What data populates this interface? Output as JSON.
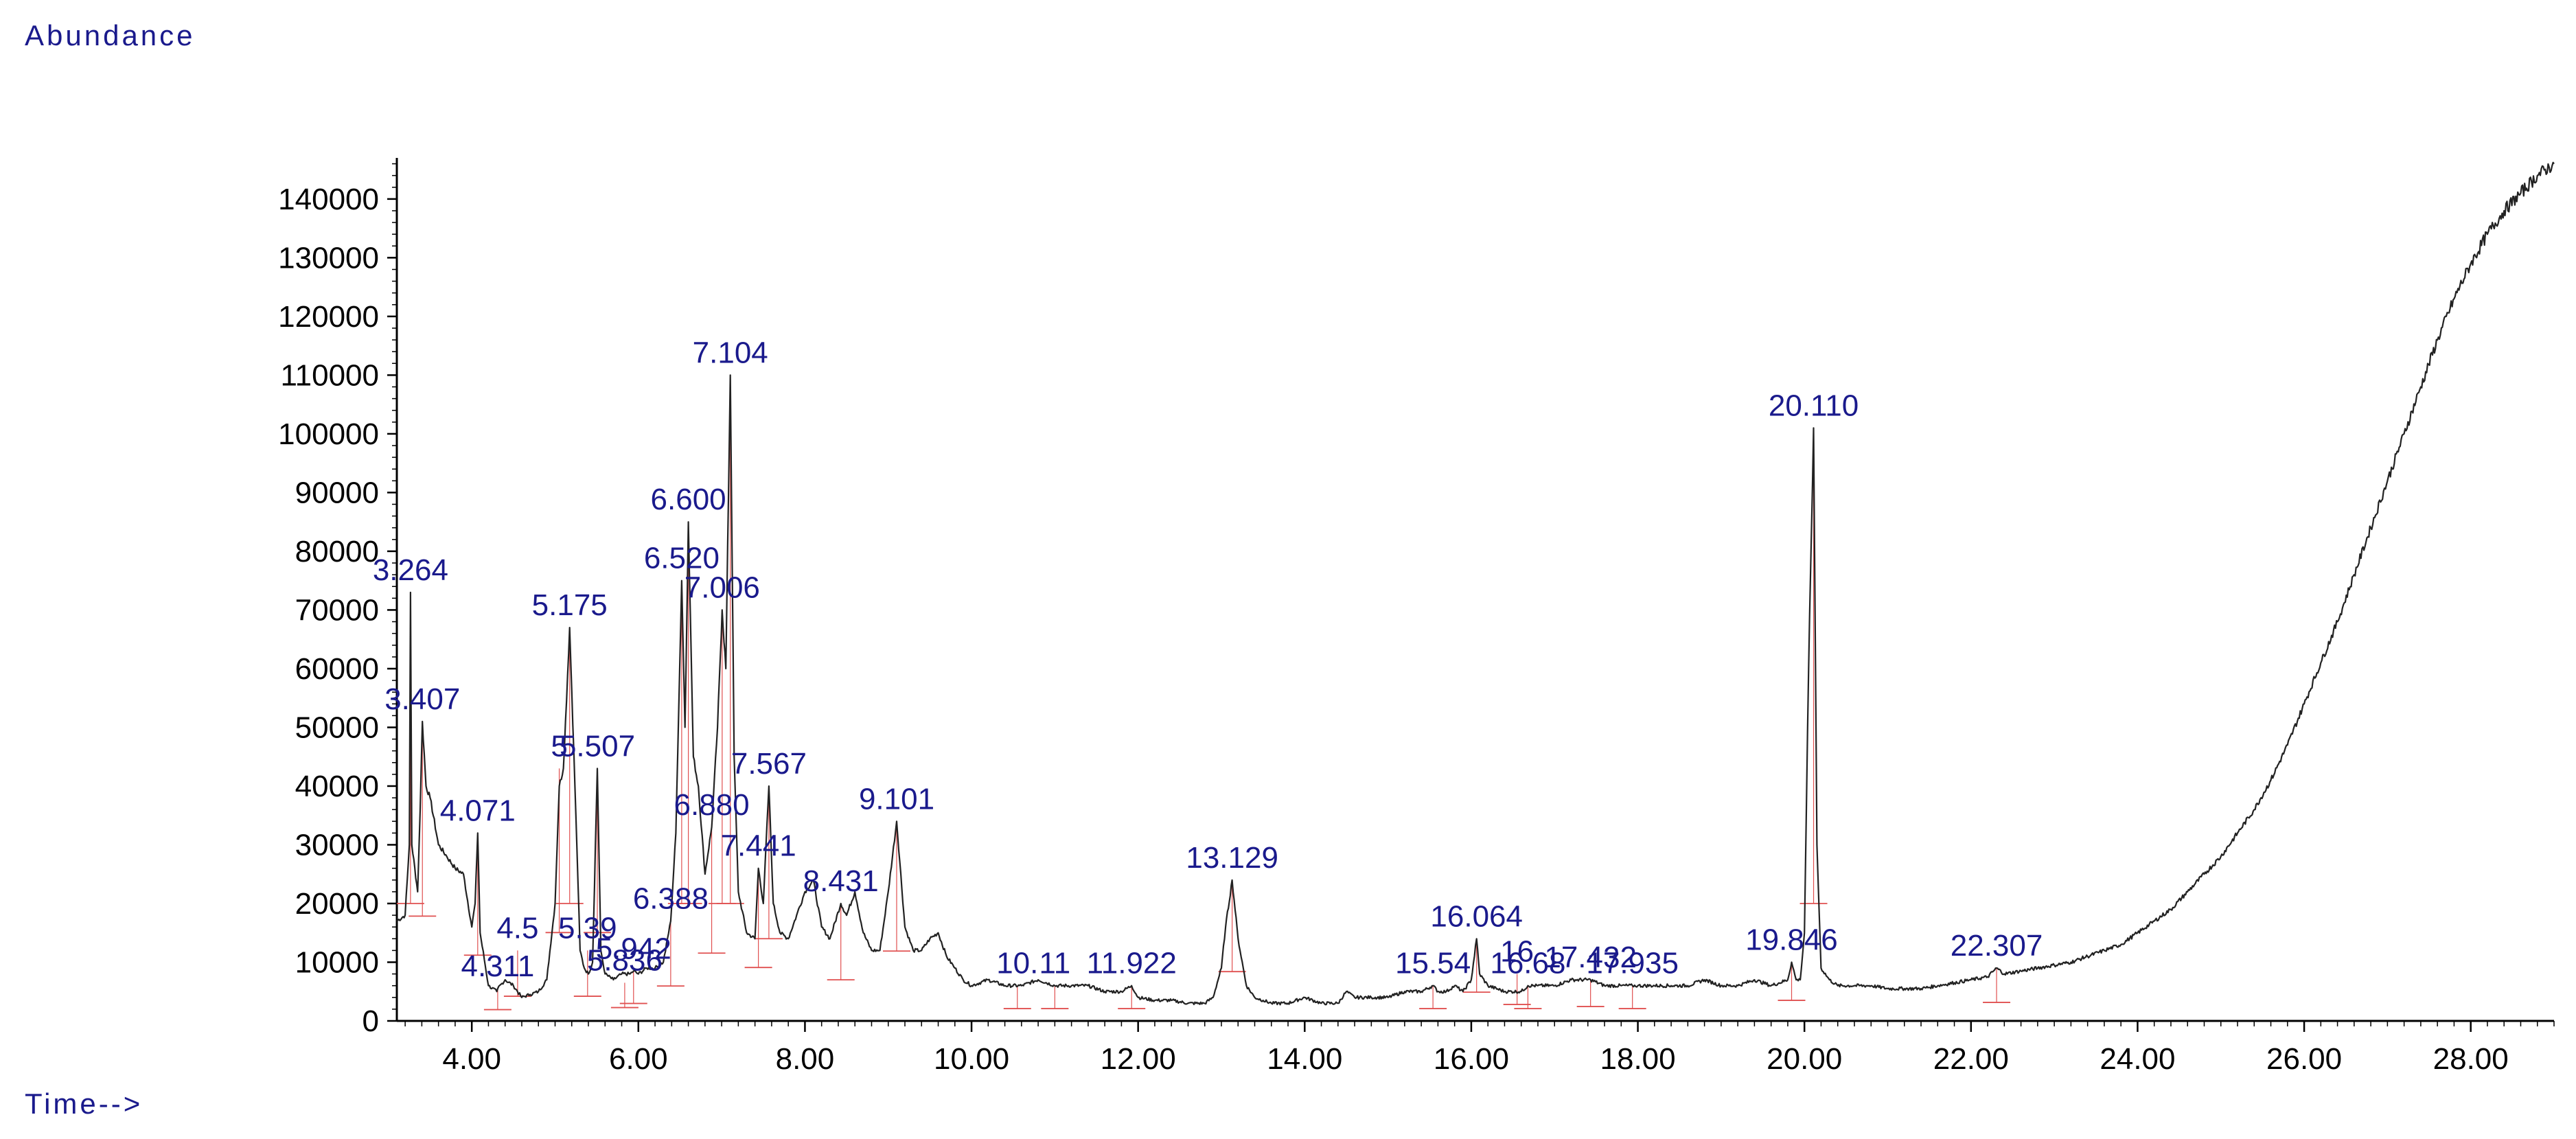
{
  "chart_data": {
    "type": "line",
    "ylabel": "Abundance",
    "xlabel": "Time-->",
    "xlim": [
      3.1,
      29.0
    ],
    "ylim": [
      0,
      147000
    ],
    "x_ticks": [
      4.0,
      6.0,
      8.0,
      10.0,
      12.0,
      14.0,
      16.0,
      18.0,
      20.0,
      22.0,
      24.0,
      26.0,
      28.0
    ],
    "x_tick_labels": [
      "4.00",
      "6.00",
      "8.00",
      "10.00",
      "12.00",
      "14.00",
      "16.00",
      "18.00",
      "20.00",
      "22.00",
      "24.00",
      "26.00",
      "28.00"
    ],
    "y_ticks": [
      0,
      10000,
      20000,
      30000,
      40000,
      50000,
      60000,
      70000,
      80000,
      90000,
      100000,
      110000,
      120000,
      130000,
      140000
    ],
    "y_tick_labels": [
      "0",
      "10000",
      "20000",
      "30000",
      "40000",
      "50000",
      "60000",
      "70000",
      "80000",
      "90000",
      "100000",
      "110000",
      "120000",
      "130000",
      "140000"
    ],
    "grid": false,
    "colors": {
      "trace": "#222222",
      "baseline": "#e05050",
      "labels": "#1a1a8c",
      "axis": "#000000"
    },
    "series": [
      {
        "x": [
          3.1,
          3.2,
          3.25,
          3.264,
          3.28,
          3.35,
          3.38,
          3.407,
          3.45,
          3.5,
          3.6,
          3.7,
          3.8,
          3.9,
          4.0,
          4.04,
          4.071,
          4.1,
          4.2,
          4.3,
          4.311,
          4.4,
          4.5,
          4.6,
          4.7,
          4.8,
          4.9,
          5.0,
          5.05,
          5.1,
          5.175,
          5.25,
          5.3,
          5.35,
          5.4,
          5.45,
          5.507,
          5.55,
          5.6,
          5.7,
          5.8,
          5.9,
          5.942,
          6.0,
          6.1,
          6.2,
          6.3,
          6.388,
          6.45,
          6.52,
          6.56,
          6.6,
          6.66,
          6.72,
          6.8,
          6.88,
          6.95,
          7.006,
          7.05,
          7.104,
          7.15,
          7.2,
          7.3,
          7.4,
          7.441,
          7.5,
          7.567,
          7.62,
          7.7,
          7.8,
          7.9,
          8.0,
          8.1,
          8.2,
          8.3,
          8.431,
          8.5,
          8.6,
          8.7,
          8.8,
          8.9,
          9.0,
          9.101,
          9.2,
          9.3,
          9.4,
          9.5,
          9.6,
          9.7,
          9.8,
          9.9,
          10.0,
          10.2,
          10.4,
          10.6,
          10.8,
          11.0,
          11.2,
          11.4,
          11.6,
          11.8,
          11.922,
          12.0,
          12.2,
          12.4,
          12.6,
          12.8,
          12.9,
          13.0,
          13.05,
          13.129,
          13.2,
          13.3,
          13.4,
          13.5,
          13.6,
          13.8,
          14.0,
          14.2,
          14.4,
          14.5,
          14.6,
          14.8,
          15.0,
          15.2,
          15.4,
          15.54,
          15.6,
          15.7,
          15.8,
          15.9,
          16.0,
          16.064,
          16.1,
          16.2,
          16.4,
          16.6,
          16.68,
          16.8,
          17.0,
          17.2,
          17.432,
          17.6,
          17.8,
          17.935,
          18.0,
          18.2,
          18.4,
          18.6,
          18.8,
          19.0,
          19.2,
          19.4,
          19.6,
          19.8,
          19.846,
          19.9,
          19.95,
          20.0,
          20.05,
          20.11,
          20.15,
          20.2,
          20.3,
          20.4,
          20.6,
          20.8,
          21.0,
          21.2,
          21.4,
          21.6,
          21.8,
          22.0,
          22.2,
          22.307,
          22.4,
          22.6,
          22.8,
          23.0,
          23.2,
          23.4,
          23.6,
          23.8,
          24.0,
          24.2,
          24.4,
          24.6,
          24.8,
          25.0,
          25.2,
          25.4,
          25.6,
          25.8,
          26.0,
          26.2,
          26.4,
          26.6,
          26.8,
          27.0,
          27.2,
          27.4,
          27.6,
          27.8,
          28.0,
          28.2,
          28.4,
          28.6,
          28.8,
          29.0
        ],
        "y": [
          17000,
          18000,
          30000,
          73000,
          30000,
          22000,
          36000,
          51000,
          40000,
          38000,
          30000,
          28000,
          26000,
          25000,
          16000,
          20000,
          32000,
          15000,
          6000,
          5000,
          5500,
          7000,
          6000,
          4000,
          4500,
          5000,
          7000,
          20000,
          40000,
          43000,
          67000,
          35000,
          12000,
          9000,
          8000,
          10000,
          43000,
          12000,
          8000,
          7000,
          8000,
          8000,
          8500,
          8000,
          9000,
          9000,
          10000,
          17000,
          32000,
          75000,
          50000,
          85000,
          45000,
          40000,
          25000,
          33000,
          50000,
          70000,
          60000,
          110000,
          45000,
          22000,
          15000,
          14000,
          26000,
          20000,
          40000,
          20000,
          15000,
          14000,
          18000,
          22000,
          24000,
          16000,
          14000,
          20000,
          18000,
          22000,
          15000,
          12000,
          12000,
          22000,
          34000,
          16000,
          12000,
          12000,
          14000,
          15000,
          11000,
          9000,
          7000,
          6000,
          7000,
          6000,
          6000,
          7000,
          6000,
          6000,
          6000,
          5000,
          5000,
          6000,
          4000,
          3500,
          3500,
          3000,
          3000,
          4000,
          9000,
          16000,
          24000,
          14000,
          6000,
          4000,
          3500,
          3000,
          3000,
          4000,
          3000,
          3000,
          5000,
          4000,
          4000,
          4000,
          5000,
          5000,
          6000,
          5000,
          5000,
          6000,
          5000,
          7000,
          14000,
          8000,
          6000,
          5000,
          5000,
          6000,
          6000,
          6000,
          7000,
          7000,
          6000,
          6000,
          6000,
          6000,
          6000,
          6000,
          6000,
          7000,
          6000,
          6000,
          7000,
          6000,
          7000,
          10000,
          7000,
          7000,
          15000,
          60000,
          101000,
          30000,
          9000,
          7000,
          6000,
          6000,
          6000,
          5500,
          5500,
          5500,
          6000,
          6500,
          7000,
          7500,
          9000,
          8000,
          8500,
          9000,
          9500,
          10000,
          11000,
          12000,
          13000,
          15000,
          17000,
          19000,
          22000,
          25000,
          28000,
          32000,
          36000,
          41000,
          47000,
          54000,
          61000,
          68000,
          76000,
          84000,
          92000,
          100000,
          108000,
          116000,
          123000,
          129000,
          134000,
          138000,
          141000,
          144000,
          146000
        ]
      }
    ],
    "peak_labels": [
      {
        "text": "3.264",
        "x": 3.264,
        "y": 73000
      },
      {
        "text": "3.407",
        "x": 3.407,
        "y": 51000
      },
      {
        "text": "4.071",
        "x": 4.071,
        "y": 32000
      },
      {
        "text": "4.311",
        "x": 4.311,
        "y": 5500
      },
      {
        "text": "4.5",
        "x": 4.55,
        "y": 12000
      },
      {
        "text": "5",
        "x": 5.05,
        "y": 43000
      },
      {
        "text": "5.175",
        "x": 5.175,
        "y": 67000
      },
      {
        "text": "5.507",
        "x": 5.507,
        "y": 43000
      },
      {
        "text": "5.39",
        "x": 5.39,
        "y": 12000
      },
      {
        "text": "5.836",
        "x": 5.836,
        "y": 6500
      },
      {
        "text": "5.942",
        "x": 5.942,
        "y": 8500
      },
      {
        "text": "6.388",
        "x": 6.388,
        "y": 17000
      },
      {
        "text": "6.520",
        "x": 6.52,
        "y": 75000
      },
      {
        "text": "6.600",
        "x": 6.6,
        "y": 85000
      },
      {
        "text": "6.880",
        "x": 6.88,
        "y": 33000
      },
      {
        "text": "7.006",
        "x": 7.006,
        "y": 70000
      },
      {
        "text": "7.104",
        "x": 7.104,
        "y": 110000
      },
      {
        "text": "7.441",
        "x": 7.441,
        "y": 26000
      },
      {
        "text": "7.567",
        "x": 7.567,
        "y": 40000
      },
      {
        "text": "8.431",
        "x": 8.431,
        "y": 20000
      },
      {
        "text": "9.101",
        "x": 9.101,
        "y": 34000
      },
      {
        "text": "10.",
        "x": 10.55,
        "y": 6000
      },
      {
        "text": "11",
        "x": 11.0,
        "y": 6000
      },
      {
        "text": "11.922",
        "x": 11.922,
        "y": 6000
      },
      {
        "text": "13.129",
        "x": 13.129,
        "y": 24000
      },
      {
        "text": "15.54",
        "x": 15.54,
        "y": 6000
      },
      {
        "text": "16.064",
        "x": 16.064,
        "y": 14000
      },
      {
        "text": "16",
        "x": 16.55,
        "y": 8000
      },
      {
        "text": "16.68",
        "x": 16.68,
        "y": 6000
      },
      {
        "text": "17.432",
        "x": 17.432,
        "y": 7000
      },
      {
        "text": "17.935",
        "x": 17.935,
        "y": 6000
      },
      {
        "text": "19.846",
        "x": 19.846,
        "y": 10000
      },
      {
        "text": "20.110",
        "x": 20.11,
        "y": 101000
      },
      {
        "text": "22.307",
        "x": 22.307,
        "y": 9000
      }
    ]
  }
}
